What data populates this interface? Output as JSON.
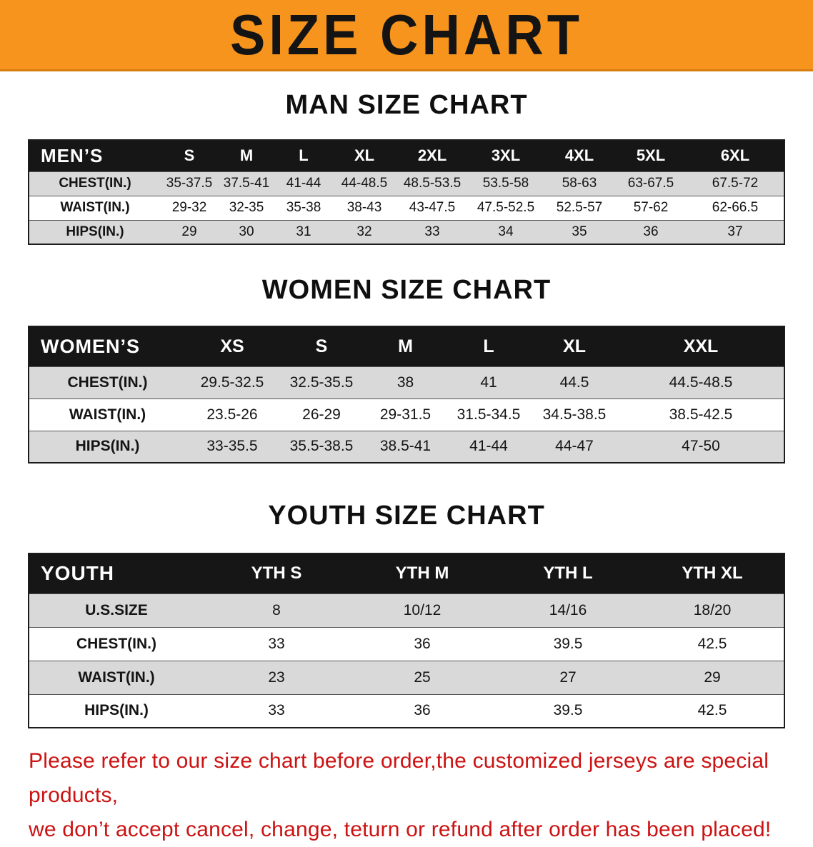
{
  "colors": {
    "banner_bg": "#F7941D",
    "header_bg": "#161616",
    "stripe": "#D9D9D9",
    "disclaimer": "#CC1212",
    "text": "#111111"
  },
  "banner": {
    "title": "SIZE CHART"
  },
  "sections": [
    {
      "heading": "MAN SIZE CHART",
      "table": {
        "header": [
          "MEN’S",
          "S",
          "M",
          "L",
          "XL",
          "2XL",
          "3XL",
          "4XL",
          "5XL",
          "6XL"
        ],
        "rows": [
          [
            "CHEST(IN.)",
            "35-37.5",
            "37.5-41",
            "41-44",
            "44-48.5",
            "48.5-53.5",
            "53.5-58",
            "58-63",
            "63-67.5",
            "67.5-72"
          ],
          [
            "WAIST(IN.)",
            "29-32",
            "32-35",
            "35-38",
            "38-43",
            "43-47.5",
            "47.5-52.5",
            "52.5-57",
            "57-62",
            "62-66.5"
          ],
          [
            "HIPS(IN.)",
            "29",
            "30",
            "31",
            "32",
            "33",
            "34",
            "35",
            "36",
            "37"
          ]
        ]
      }
    },
    {
      "heading": "WOMEN SIZE CHART",
      "table": {
        "header": [
          "WOMEN’S",
          "XS",
          "S",
          "M",
          "L",
          "XL",
          "XXL"
        ],
        "rows": [
          [
            "CHEST(IN.)",
            "29.5-32.5",
            "32.5-35.5",
            "38",
            "41",
            "44.5",
            "44.5-48.5"
          ],
          [
            "WAIST(IN.)",
            "23.5-26",
            "26-29",
            "29-31.5",
            "31.5-34.5",
            "34.5-38.5",
            "38.5-42.5"
          ],
          [
            "HIPS(IN.)",
            "33-35.5",
            "35.5-38.5",
            "38.5-41",
            "41-44",
            "44-47",
            "47-50"
          ]
        ]
      }
    },
    {
      "heading": "YOUTH SIZE CHART",
      "table": {
        "header": [
          "YOUTH",
          "YTH S",
          "YTH M",
          "YTH L",
          "YTH XL"
        ],
        "rows": [
          [
            "U.S.SIZE",
            "8",
            "10/12",
            "14/16",
            "18/20"
          ],
          [
            "CHEST(IN.)",
            "33",
            "36",
            "39.5",
            "42.5"
          ],
          [
            "WAIST(IN.)",
            "23",
            "25",
            "27",
            "29"
          ],
          [
            "HIPS(IN.)",
            "33",
            "36",
            "39.5",
            "42.5"
          ]
        ]
      }
    }
  ],
  "disclaimer": {
    "line1": "Please refer to our size chart before order,the customized jerseys are special products,",
    "line2": "we don’t accept cancel, change, teturn or refund after order has been placed!"
  }
}
